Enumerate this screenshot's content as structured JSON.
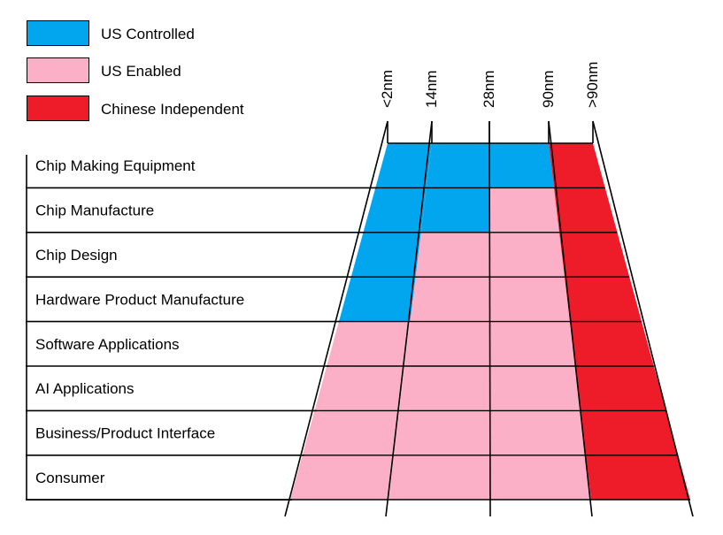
{
  "colors": {
    "us_controlled": "#02a6ef",
    "us_enabled": "#fbb0c8",
    "chinese_independent": "#ee1c28",
    "line": "#000000"
  },
  "legend": [
    {
      "key": "us_controlled",
      "label": "US Controlled",
      "color": "#02a6ef"
    },
    {
      "key": "us_enabled",
      "label": "US Enabled",
      "color": "#fbb0c8"
    },
    {
      "key": "chinese_independent",
      "label": "Chinese Independent",
      "color": "#ee1c28"
    }
  ],
  "columns": [
    "<2nm",
    "14nm",
    "28nm",
    "90nm",
    ">90nm"
  ],
  "rows": [
    {
      "label": "Chip Making Equipment",
      "cells": [
        "us_controlled",
        "us_controlled",
        "us_controlled",
        "chinese_independent"
      ]
    },
    {
      "label": "Chip Manufacture",
      "cells": [
        "us_controlled",
        "us_controlled",
        "us_enabled",
        "chinese_independent"
      ]
    },
    {
      "label": "Chip Design",
      "cells": [
        "us_controlled",
        "us_enabled",
        "us_enabled",
        "chinese_independent"
      ]
    },
    {
      "label": "Hardware Product Manufacture",
      "cells": [
        "us_controlled",
        "us_enabled",
        "us_enabled",
        "chinese_independent"
      ]
    },
    {
      "label": "Software Applications",
      "cells": [
        "us_enabled",
        "us_enabled",
        "us_enabled",
        "chinese_independent"
      ]
    },
    {
      "label": "AI Applications",
      "cells": [
        "us_enabled",
        "us_enabled",
        "us_enabled",
        "chinese_independent"
      ]
    },
    {
      "label": "Business/Product Interface",
      "cells": [
        "us_enabled",
        "us_enabled",
        "us_enabled",
        "chinese_independent"
      ]
    },
    {
      "label": "Consumer",
      "cells": [
        "us_enabled",
        "us_enabled",
        "us_enabled",
        "chinese_independent"
      ]
    }
  ]
}
